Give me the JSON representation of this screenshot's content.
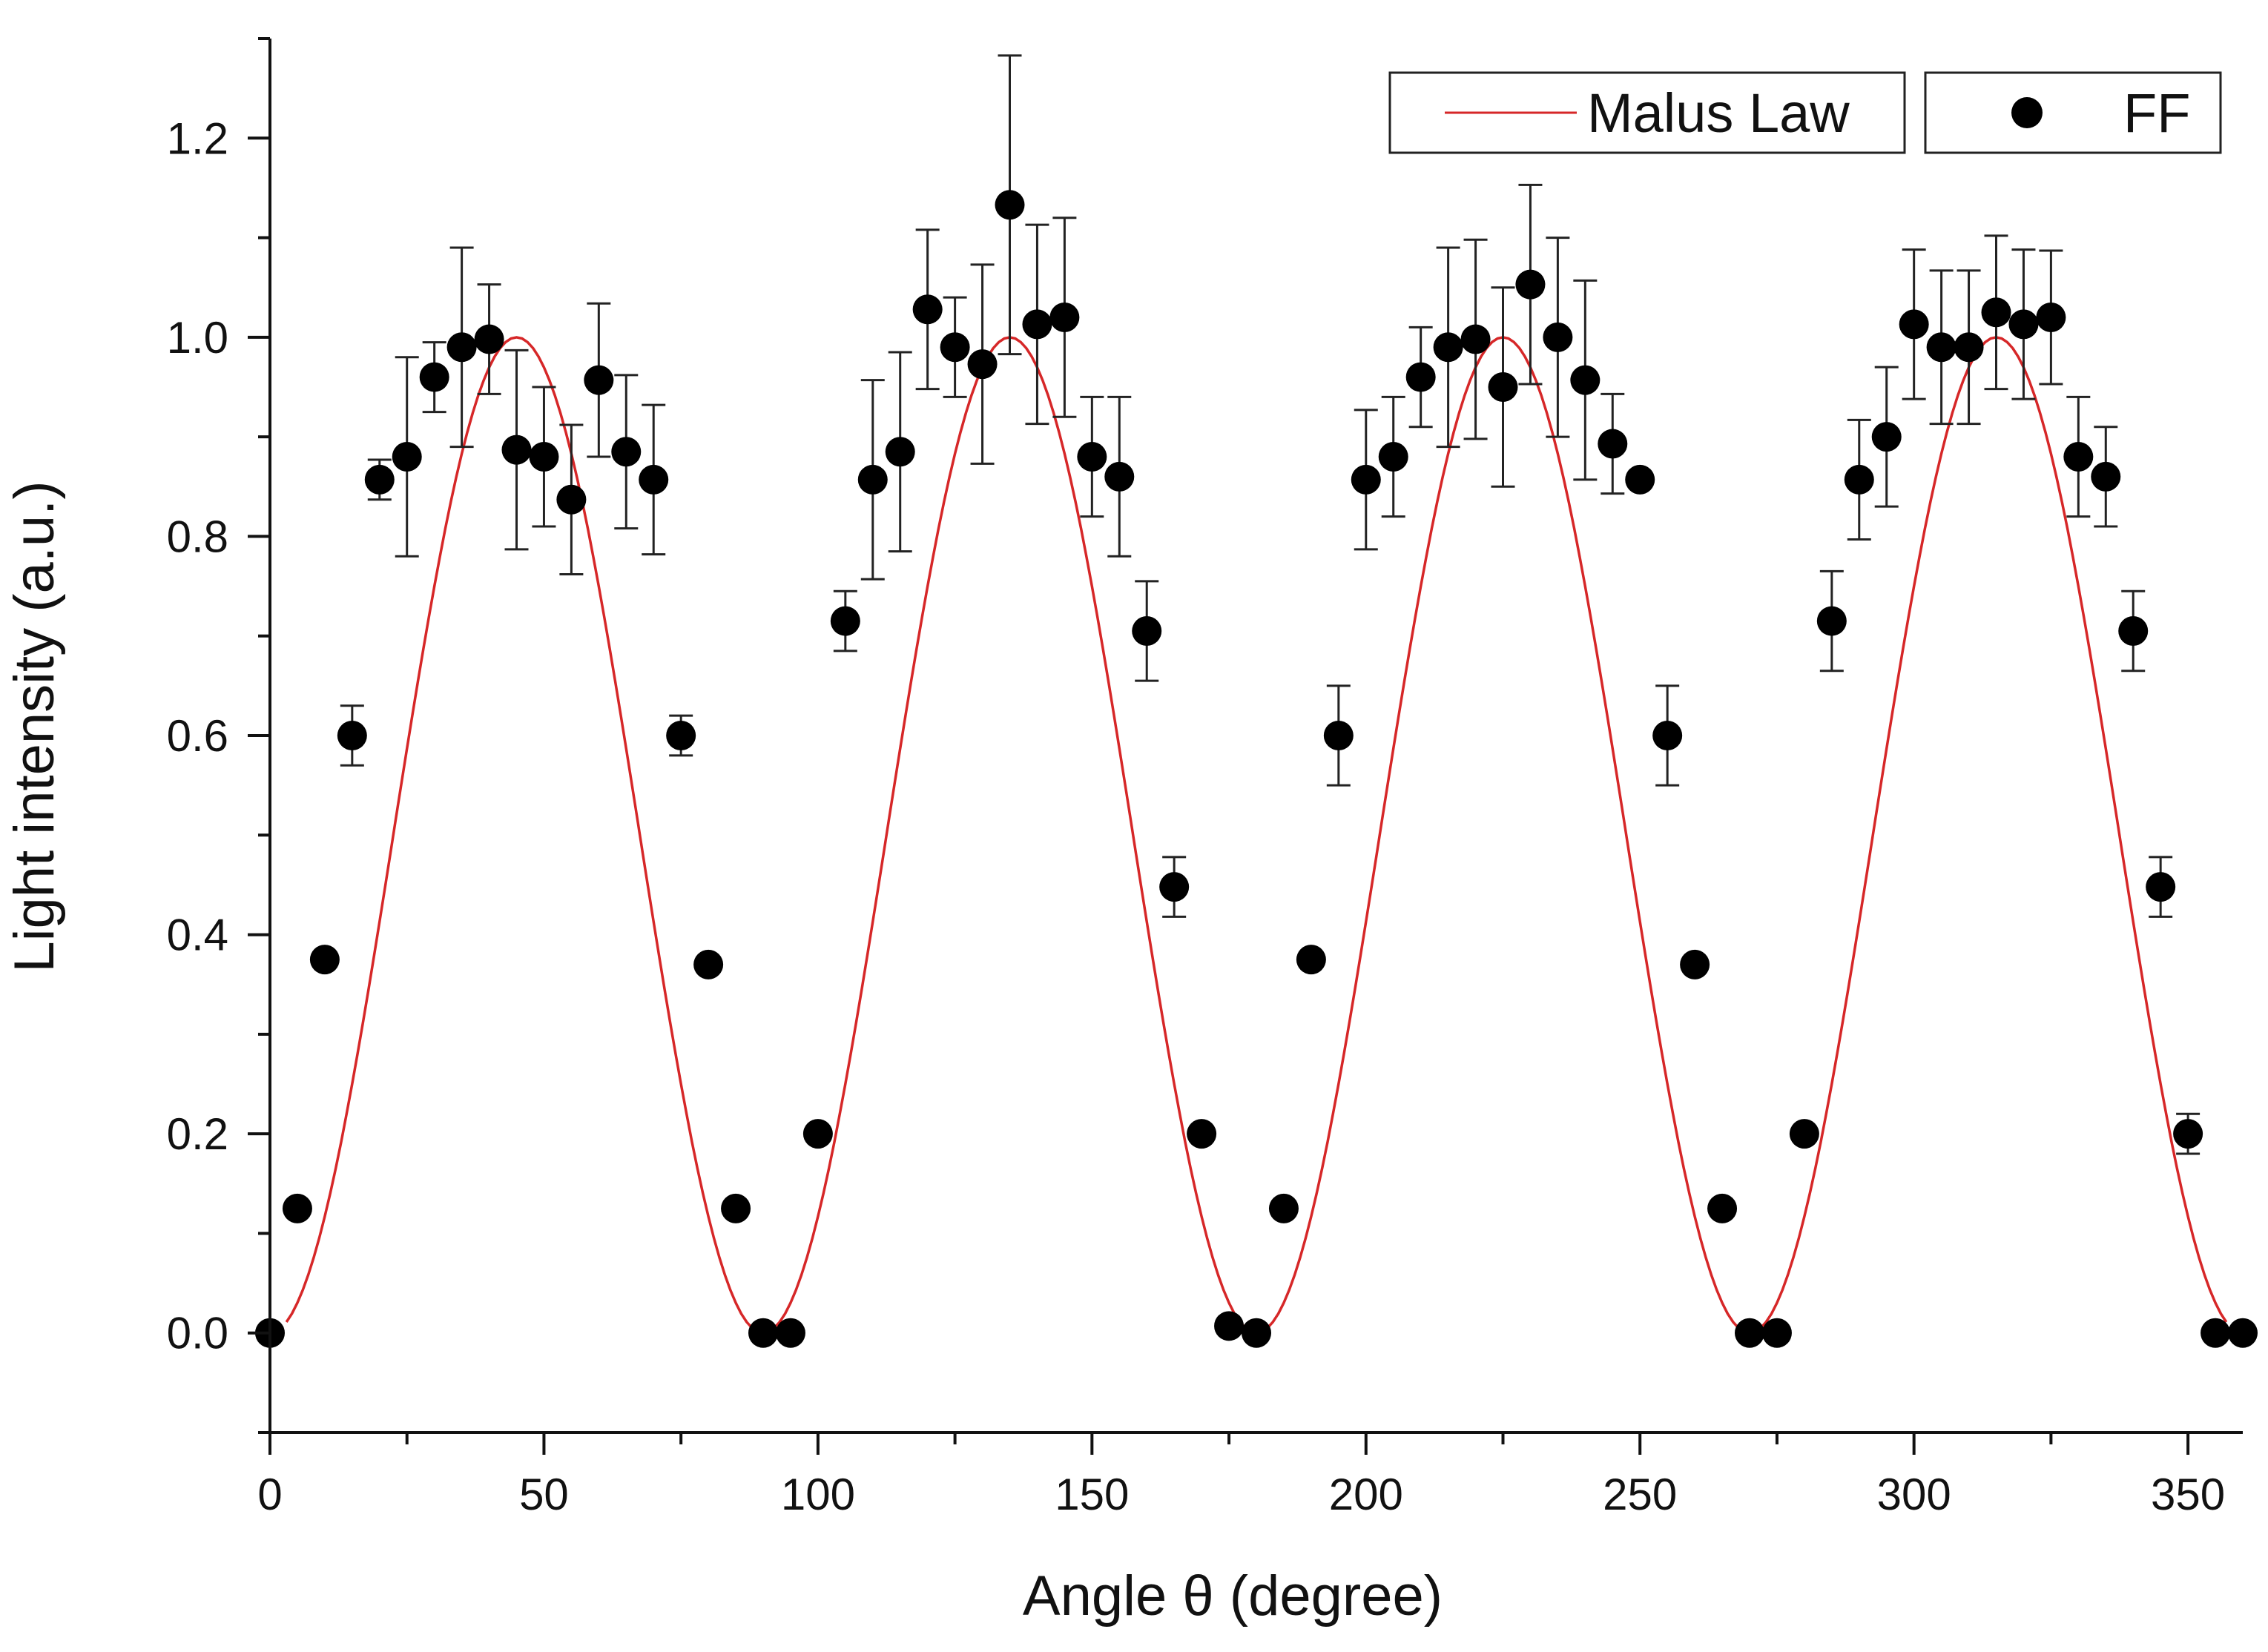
{
  "chart_data": {
    "type": "scatter",
    "title": "",
    "xlabel": "Angle θ (degree)",
    "ylabel": "Light intensity (a.u.)",
    "xlim": [
      0,
      360
    ],
    "ylim": [
      -0.1,
      1.3
    ],
    "xticks": [
      0,
      50,
      100,
      150,
      200,
      250,
      300,
      350
    ],
    "xtick_labels": [
      "0",
      "50",
      "100",
      "150",
      "200",
      "250",
      "300",
      "350"
    ],
    "yticks": [
      0.0,
      0.2,
      0.4,
      0.6,
      0.8,
      1.0,
      1.2
    ],
    "ytick_labels": [
      "0.0",
      "0.2",
      "0.4",
      "0.6",
      "0.8",
      "1.0",
      "1.2"
    ],
    "grid": false,
    "legend": [
      {
        "label": "Malus Law",
        "kind": "line",
        "color": "#d62728",
        "position": "top-right"
      },
      {
        "label": "FF",
        "kind": "marker",
        "color": "#000000",
        "position": "top-right"
      }
    ],
    "series": [
      {
        "name": "Malus Law",
        "kind": "line",
        "color": "#d62728",
        "model": "sin^2(2θ)",
        "x_range": [
          3,
          357
        ]
      },
      {
        "name": "FF",
        "kind": "scatter",
        "color": "#000000",
        "x": [
          0,
          5,
          10,
          15,
          20,
          25,
          30,
          35,
          40,
          45,
          50,
          55,
          60,
          65,
          70,
          75,
          80,
          85,
          90,
          95,
          100,
          105,
          110,
          115,
          120,
          125,
          130,
          135,
          140,
          145,
          150,
          155,
          160,
          165,
          170,
          175,
          180,
          185,
          190,
          195,
          200,
          205,
          210,
          215,
          220,
          225,
          230,
          235,
          240,
          245,
          250,
          255,
          260,
          265,
          270,
          275,
          280,
          285,
          290,
          295,
          300,
          305,
          310,
          315,
          320,
          325,
          330,
          335,
          340,
          345,
          350,
          355,
          360
        ],
        "y": [
          0.0,
          0.125,
          0.375,
          0.6,
          0.857,
          0.88,
          0.96,
          0.99,
          0.998,
          0.887,
          0.88,
          0.837,
          0.957,
          0.885,
          0.857,
          0.6,
          0.37,
          0.125,
          0.0,
          0.0,
          0.2,
          0.715,
          0.857,
          0.885,
          1.028,
          0.99,
          0.973,
          1.133,
          1.013,
          1.02,
          0.88,
          0.86,
          0.705,
          0.448,
          0.2,
          0.007,
          0.0,
          0.125,
          0.375,
          0.6,
          0.857,
          0.88,
          0.96,
          0.99,
          0.998,
          0.95,
          1.053,
          1.0,
          0.957,
          0.893,
          0.857,
          0.6,
          0.37,
          0.125,
          0.0,
          0.0,
          0.2,
          0.715,
          0.857,
          0.9,
          1.013,
          0.99,
          0.99,
          1.025,
          1.013,
          1.02,
          0.88,
          0.86,
          0.705,
          0.448,
          0.2,
          0.0,
          0.0
        ],
        "yerr": [
          0,
          0,
          0,
          0.03,
          0.02,
          0.1,
          0.035,
          0.1,
          0.055,
          0.1,
          0.07,
          0.075,
          0.077,
          0.077,
          0.075,
          0.02,
          0,
          0,
          0,
          0,
          0,
          0.03,
          0.1,
          0.1,
          0.08,
          0.05,
          0.1,
          0.15,
          0.1,
          0.1,
          0.06,
          0.08,
          0.05,
          0.03,
          0,
          0,
          0,
          0,
          0,
          0.05,
          0.07,
          0.06,
          0.05,
          0.1,
          0.1,
          0.1,
          0.1,
          0.1,
          0.1,
          0.05,
          0,
          0.05,
          0,
          0,
          0,
          0,
          0,
          0.05,
          0.06,
          0.07,
          0.075,
          0.077,
          0.077,
          0.077,
          0.075,
          0.067,
          0.06,
          0.05,
          0.04,
          0.03,
          0.02,
          0,
          0
        ]
      }
    ]
  }
}
